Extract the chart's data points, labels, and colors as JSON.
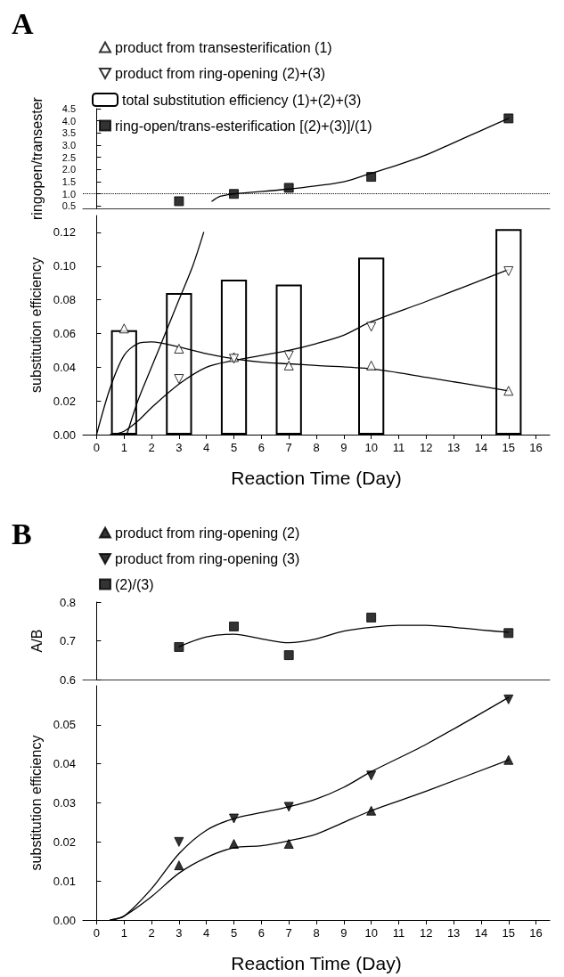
{
  "chart_data": [
    {
      "type": "scatter",
      "title": "A",
      "ylabel": "ringopen/transester",
      "legend": "top",
      "grid": false,
      "tick_labels": "y",
      "xlim": [
        -0.5,
        16.5
      ],
      "ylim": [
        0.4,
        4.5
      ],
      "yticks": [
        0.5,
        {
          "value": 1,
          "label": "1.0"
        },
        1.5,
        {
          "value": 2,
          "label": "2.0"
        },
        2.5,
        {
          "value": 3,
          "label": "3.0"
        },
        3.5,
        {
          "value": 4,
          "label": "4.0"
        },
        4.5
      ],
      "ref_lines": [
        {
          "axis": "y",
          "value": 1,
          "label": null,
          "line_style": "dotted",
          "color": "#000000"
        }
      ],
      "series": [
        {
          "name": "ring-open/trans-esterification [(2)+(3)]/(1)",
          "color": "#000000",
          "marker": "square",
          "x": [
            3,
            5,
            7,
            10,
            15
          ],
          "values": [
            0.7,
            1.0,
            1.25,
            1.7,
            4.1
          ]
        },
        {
          "type": "line",
          "color": "#000000",
          "marker": "none",
          "x": [
            4.2,
            4.5,
            5,
            7,
            9,
            10,
            11,
            12,
            13,
            14,
            15
          ],
          "values": [
            0.7,
            0.9,
            1.0,
            1.2,
            1.5,
            1.85,
            2.2,
            2.6,
            3.1,
            3.6,
            4.1
          ]
        }
      ]
    },
    {
      "type": "scatter",
      "xlabel": "Reaction Time (Day)",
      "ylabel": "substitution efficiency",
      "legend": "top",
      "grid": false,
      "xlim": [
        -0.5,
        16.5
      ],
      "xticks": [
        0,
        1,
        2,
        3,
        4,
        5,
        6,
        7,
        8,
        9,
        10,
        11,
        12,
        13,
        14,
        15,
        16
      ],
      "ylim": [
        0,
        0.13
      ],
      "yticks": [
        {
          "value": 0,
          "label": "0.00"
        },
        {
          "value": 0.02,
          "label": "0.02"
        },
        {
          "value": 0.04,
          "label": "0.04"
        },
        {
          "value": 0.06,
          "label": "0.06"
        },
        {
          "value": 0.08,
          "label": "0.08"
        },
        {
          "value": 0.1,
          "label": "0.10"
        },
        {
          "value": 0.12,
          "label": "0.12"
        }
      ],
      "series": [
        {
          "name": "product from transesterification (1)",
          "color": "#ffffff",
          "marker": "triangle",
          "x": [
            1,
            3,
            5,
            7,
            10,
            15
          ],
          "values": [
            0.063,
            0.051,
            0.046,
            0.041,
            0.041,
            0.026
          ]
        },
        {
          "name": "product from ring-opening (2)+(3)",
          "color": "#ffffff",
          "marker": "triangle_down",
          "x": [
            3,
            5,
            7,
            10,
            15
          ],
          "values": [
            0.033,
            0.045,
            0.047,
            0.064,
            0.097
          ]
        },
        {
          "type": "bar",
          "name": "total substitution efficiency (1)+(2)+(3)",
          "color": "#ffffff",
          "x": [
            1,
            3,
            5,
            7,
            10,
            15
          ],
          "values": [
            0.062,
            0.084,
            0.092,
            0.089,
            0.105,
            0.122
          ]
        },
        {
          "type": "line",
          "color": "#000000",
          "marker": "none",
          "x": [
            0,
            0.5,
            1,
            1.5,
            2,
            3,
            4,
            5,
            6,
            7,
            8,
            10,
            12,
            15
          ],
          "values": [
            0,
            0.028,
            0.047,
            0.054,
            0.055,
            0.052,
            0.048,
            0.045,
            0.043,
            0.042,
            0.041,
            0.039,
            0.034,
            0.026
          ]
        },
        {
          "type": "line",
          "color": "#000000",
          "marker": "none",
          "x": [
            0.5,
            1,
            1.5,
            2,
            3,
            4,
            5,
            6,
            7,
            8,
            9,
            10,
            12,
            15
          ],
          "values": [
            0,
            0.002,
            0.008,
            0.016,
            0.03,
            0.04,
            0.044,
            0.047,
            0.05,
            0.054,
            0.059,
            0.067,
            0.079,
            0.098
          ]
        },
        {
          "type": "line",
          "color": "#000000",
          "marker": "none",
          "x": [
            1.1,
            1.5,
            2,
            2.5,
            3,
            3.5,
            3.9
          ],
          "values": [
            0,
            0.02,
            0.04,
            0.06,
            0.08,
            0.1,
            0.12
          ]
        }
      ]
    },
    {
      "type": "scatter",
      "title": "B",
      "ylabel": "A/B",
      "legend": "top",
      "grid": false,
      "tick_labels": "y",
      "xlim": [
        -0.5,
        16.5
      ],
      "ylim": [
        0.6,
        0.8
      ],
      "yticks": [
        0.6,
        0.7,
        0.8
      ],
      "series": [
        {
          "name": "(2)/(3)",
          "color": "#000000",
          "marker": "square",
          "x": [
            3,
            5,
            7,
            10,
            15
          ],
          "values": [
            0.684,
            0.737,
            0.663,
            0.76,
            0.72
          ]
        },
        {
          "type": "line",
          "color": "#000000",
          "marker": "none",
          "x": [
            3,
            4,
            5,
            6,
            7,
            8,
            9,
            10,
            11,
            12,
            13,
            14,
            15
          ],
          "values": [
            0.685,
            0.71,
            0.717,
            0.705,
            0.695,
            0.705,
            0.725,
            0.735,
            0.74,
            0.74,
            0.735,
            0.728,
            0.722
          ]
        }
      ]
    },
    {
      "type": "scatter",
      "xlabel": "Reaction Time (Day)",
      "ylabel": "substitution efficiency",
      "legend": "top",
      "grid": false,
      "xlim": [
        -0.5,
        16.5
      ],
      "xticks": [
        0,
        1,
        2,
        3,
        4,
        5,
        6,
        7,
        8,
        9,
        10,
        11,
        12,
        13,
        14,
        15,
        16
      ],
      "ylim": [
        0,
        0.06
      ],
      "yticks": [
        {
          "value": 0,
          "label": "0.00"
        },
        {
          "value": 0.01,
          "label": "0.01"
        },
        {
          "value": 0.02,
          "label": "0.02"
        },
        {
          "value": 0.03,
          "label": "0.03"
        },
        {
          "value": 0.04,
          "label": "0.04"
        },
        {
          "value": 0.05,
          "label": "0.05"
        }
      ],
      "series": [
        {
          "name": "product from ring-opening (2)",
          "color": "#000000",
          "marker": "triangle",
          "x": [
            3,
            5,
            7,
            10,
            15
          ],
          "values": [
            0.014,
            0.0195,
            0.0195,
            0.028,
            0.041
          ]
        },
        {
          "name": "product from ring-opening (3)",
          "color": "#000000",
          "marker": "triangle_down",
          "x": [
            3,
            5,
            7,
            10,
            15
          ],
          "values": [
            0.02,
            0.026,
            0.029,
            0.037,
            0.0565
          ]
        },
        {
          "type": "line",
          "color": "#000000",
          "marker": "none",
          "x": [
            0.5,
            1,
            2,
            3,
            4,
            5,
            6,
            7,
            8,
            9,
            10,
            12,
            15
          ],
          "values": [
            0,
            0.001,
            0.006,
            0.012,
            0.016,
            0.0185,
            0.019,
            0.0203,
            0.022,
            0.025,
            0.028,
            0.033,
            0.041
          ]
        },
        {
          "type": "line",
          "color": "#000000",
          "marker": "none",
          "x": [
            0.5,
            1,
            2,
            3,
            4,
            5,
            6,
            7,
            8,
            9,
            10,
            12,
            15
          ],
          "values": [
            0,
            0.001,
            0.008,
            0.017,
            0.023,
            0.026,
            0.0275,
            0.029,
            0.031,
            0.034,
            0.038,
            0.045,
            0.057
          ]
        }
      ]
    }
  ]
}
